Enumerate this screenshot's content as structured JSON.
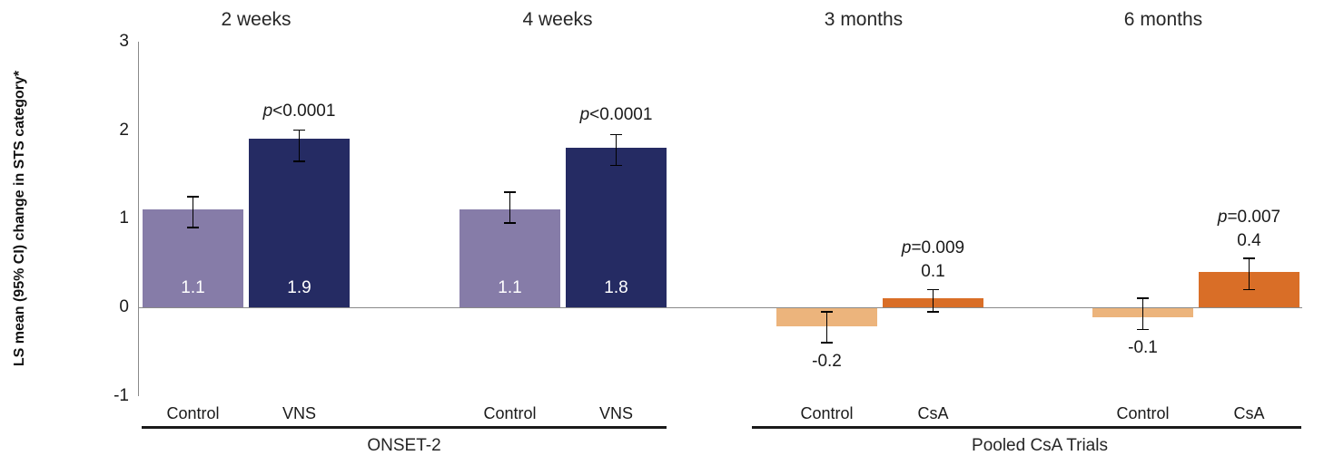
{
  "chart_data": {
    "type": "bar",
    "title": "",
    "ylabel": "LS mean (95% CI) change in STS category*",
    "xlabel": "",
    "ylim": [
      -1,
      3
    ],
    "yticks": [
      "3",
      "2",
      "1",
      "0",
      "-1"
    ],
    "grid": false,
    "legend": null,
    "p_italic_prefix": "p",
    "colors": {
      "control_left": "#867CA8",
      "treatment_left": "#252B63",
      "control_right": "#ECB47C",
      "treatment_right": "#D96E27",
      "axis": "#8a8a8a",
      "error_bar": "#000000",
      "section_line": "#1a1a1a",
      "text": "#1a1a1a"
    },
    "sections": [
      {
        "name": "ONSET-2",
        "groups": [
          {
            "header": "2 weeks",
            "bars": [
              {
                "label": "Control",
                "value": 1.1,
                "value_label": "1.1",
                "ci_low": 0.9,
                "ci_high": 1.25,
                "color_key": "control_left",
                "value_label_placement": "inside",
                "p_value": null
              },
              {
                "label": "VNS",
                "value": 1.9,
                "value_label": "1.9",
                "ci_low": 1.65,
                "ci_high": 2.0,
                "color_key": "treatment_left",
                "value_label_placement": "inside",
                "p_value": "<0.0001"
              }
            ]
          },
          {
            "header": "4 weeks",
            "bars": [
              {
                "label": "Control",
                "value": 1.1,
                "value_label": "1.1",
                "ci_low": 0.95,
                "ci_high": 1.3,
                "color_key": "control_left",
                "value_label_placement": "inside",
                "p_value": null
              },
              {
                "label": "VNS",
                "value": 1.8,
                "value_label": "1.8",
                "ci_low": 1.6,
                "ci_high": 1.95,
                "color_key": "treatment_left",
                "value_label_placement": "inside",
                "p_value": "<0.0001"
              }
            ]
          }
        ]
      },
      {
        "name": "Pooled CsA Trials",
        "groups": [
          {
            "header": "3 months",
            "bars": [
              {
                "label": "Control",
                "value": -0.2,
                "value_label": "-0.2",
                "ci_low": -0.4,
                "ci_high": -0.05,
                "color_key": "control_right",
                "value_label_placement": "outside",
                "p_value": null
              },
              {
                "label": "CsA",
                "value": 0.1,
                "value_label": "0.1",
                "ci_low": -0.05,
                "ci_high": 0.2,
                "color_key": "treatment_right",
                "value_label_placement": "outside",
                "p_value": "=0.009"
              }
            ]
          },
          {
            "header": "6 months",
            "bars": [
              {
                "label": "Control",
                "value": -0.1,
                "value_label": "-0.1",
                "ci_low": -0.25,
                "ci_high": 0.1,
                "color_key": "control_right",
                "value_label_placement": "outside",
                "p_value": null
              },
              {
                "label": "CsA",
                "value": 0.4,
                "value_label": "0.4",
                "ci_low": 0.2,
                "ci_high": 0.55,
                "color_key": "treatment_right",
                "value_label_placement": "outside",
                "p_value": "=0.007"
              }
            ]
          }
        ]
      }
    ]
  }
}
